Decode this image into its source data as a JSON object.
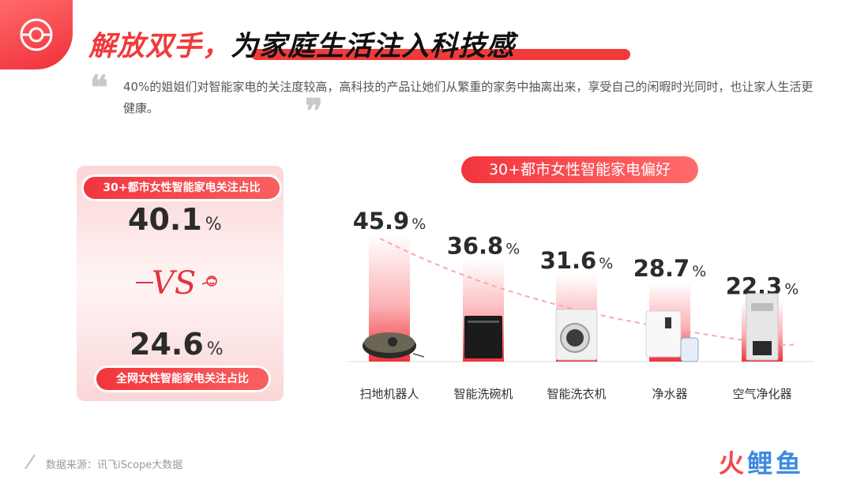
{
  "header": {
    "title_red": "解放双手，",
    "title_black": "为家庭生活注入科技感",
    "quote_open": "❝",
    "quote_close": "❞",
    "quote_text": "40%的姐姐们对智能家电的关注度较高，高科技的产品让她们从繁重的家务中抽离出来，享受自己的闲暇时光同时，也让家人生活更健康。"
  },
  "comparison": {
    "top_label": "30+都市女性智能家电关注占比",
    "top_value": "40.1",
    "top_unit": "%",
    "vs_text": "VS",
    "bottom_value": "24.6",
    "bottom_unit": "%",
    "bottom_label": "全网女性智能家电关注占比"
  },
  "chart_data": {
    "type": "bar",
    "title": "30+都市女性智能家电偏好",
    "categories": [
      "扫地机器人",
      "智能洗碗机",
      "智能洗衣机",
      "净水器",
      "空气净化器"
    ],
    "values": [
      45.9,
      36.8,
      31.6,
      28.7,
      22.3
    ],
    "unit": "%",
    "trend_line": true,
    "icons": [
      "robot-vacuum-icon",
      "dishwasher-icon",
      "washing-machine-icon",
      "water-purifier-icon",
      "air-purifier-icon"
    ]
  },
  "footer": {
    "source": "数据来源：讯飞iScope大数据",
    "watermark_a": "火",
    "watermark_b": "鲤鱼"
  },
  "colors": {
    "accent": "#f23a3f",
    "accent_light": "#fbd6d7",
    "text_dark": "#2b2b2b"
  }
}
